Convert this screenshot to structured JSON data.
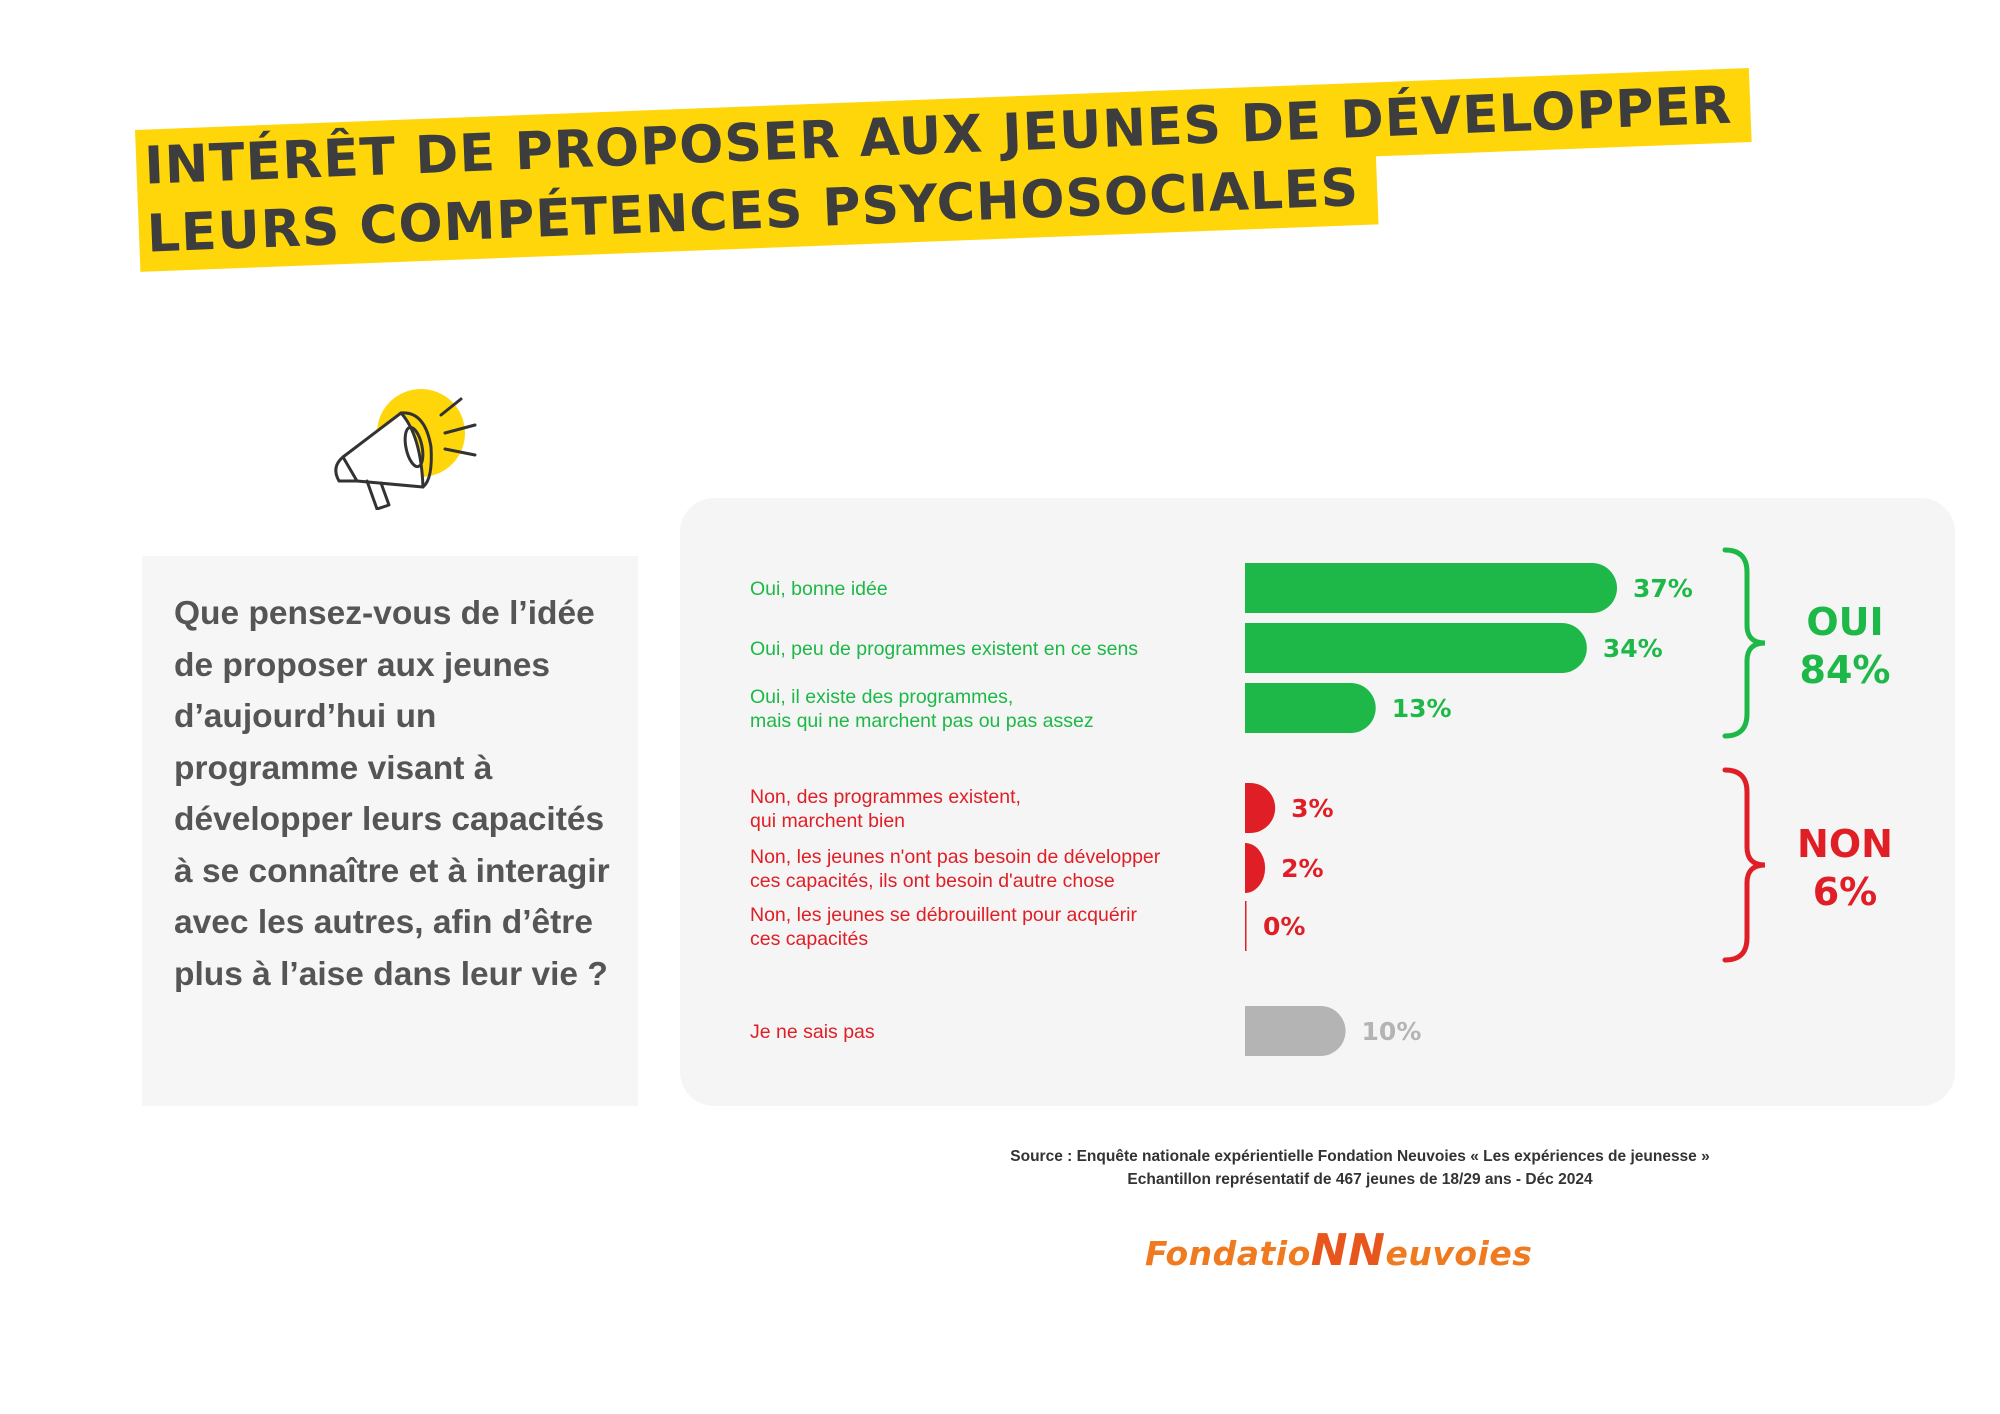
{
  "title": {
    "line1": "INTÉRÊT DE PROPOSER AUX JEUNES DE DÉVELOPPER",
    "line2": "LEURS COMPÉTENCES PSYCHOSOCIALES"
  },
  "question": "Que pensez-vous de l’idée de proposer aux jeunes d’aujourd’hui un programme visant à développer leurs capacités à se connaître et à interagir avec les autres, afin d’être plus à l’aise dans leur vie ?",
  "colors": {
    "accent": "#FFD60A",
    "oui": "#1DB847",
    "non": "#E01E26",
    "neutral": "#B4B4B4",
    "question_text": "#555555"
  },
  "icons": {
    "megaphone": "megaphone-icon"
  },
  "chart_data": {
    "type": "bar",
    "orientation": "horizontal",
    "unit": "%",
    "xlim": [
      0,
      37
    ],
    "categories": [
      [
        "Oui, bonne idée"
      ],
      [
        "Oui, peu de programmes existent en ce sens"
      ],
      [
        "Oui, il existe des programmes,",
        "mais qui ne marchent pas ou pas assez"
      ],
      [
        "Non, des programmes existent,",
        "qui marchent bien"
      ],
      [
        "Non, les jeunes n'ont pas besoin de développer",
        "ces capacités, ils ont besoin d'autre chose"
      ],
      [
        "Non, les jeunes se débrouillent pour acquérir",
        "ces capacités"
      ],
      [
        "Je ne sais pas"
      ]
    ],
    "values": [
      37,
      34,
      13,
      3,
      2,
      0,
      10
    ],
    "value_labels": [
      "37%",
      "34%",
      "13%",
      "3%",
      "2%",
      "0%",
      "10%"
    ],
    "groups": [
      {
        "label_line1": "OUI",
        "label_line2": "84%",
        "color": "#1DB847",
        "bars": [
          0,
          1,
          2
        ]
      },
      {
        "label_line1": "NON",
        "label_line2": "6%",
        "color": "#E01E26",
        "bars": [
          3,
          4,
          5
        ]
      }
    ],
    "bar_colors": [
      "#1DB847",
      "#1DB847",
      "#1DB847",
      "#E01E26",
      "#E01E26",
      "#E01E26",
      "#B4B4B4"
    ],
    "label_colors": [
      "#1DB847",
      "#1DB847",
      "#1DB847",
      "#E01E26",
      "#E01E26",
      "#E01E26",
      "#E01E26"
    ],
    "value_label_colors": [
      "#1DB847",
      "#1DB847",
      "#1DB847",
      "#E01E26",
      "#E01E26",
      "#E01E26",
      "#B4B4B4"
    ],
    "grid": false,
    "legend": "none"
  },
  "source": {
    "line1": "Source : Enquête nationale expérientielle Fondation Neuvoies « Les expériences de jeunesse »",
    "line2": "Echantillon représentatif de 467 jeunes de 18/29 ans -  Déc 2024"
  },
  "logo": {
    "part1": "Fondatio",
    "part2": "NN",
    "part3": "euvoies"
  }
}
